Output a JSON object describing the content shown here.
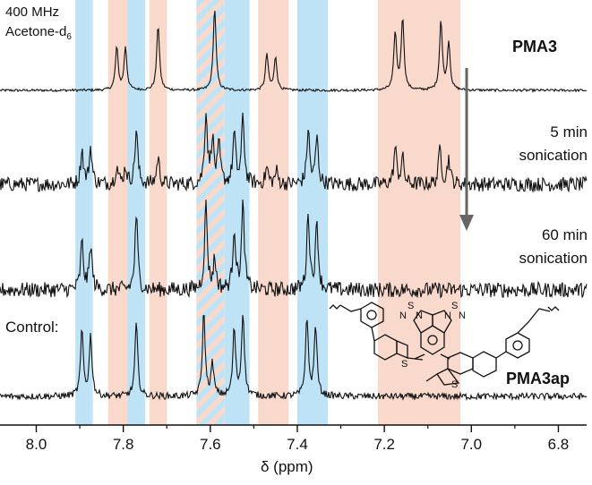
{
  "chart_data": {
    "type": "line",
    "xlabel": "δ (ppm)",
    "xlim": [
      8.1,
      6.7
    ],
    "x_ticks": [
      "8.0",
      "7.8",
      "7.6",
      "7.4",
      "7.2",
      "7.0",
      "6.8"
    ],
    "x_tick_values": [
      8.0,
      7.8,
      7.6,
      7.4,
      7.2,
      7.0,
      6.8
    ],
    "x_reversed": true,
    "grid": false,
    "header": {
      "line1": "400 MHz",
      "line2": "Acetone-d",
      "line2_sub": "6"
    },
    "highlight_bands": [
      {
        "from": 7.91,
        "to": 7.87,
        "color": "#bfe3f6"
      },
      {
        "from": 7.835,
        "to": 7.79,
        "color": "#f8d9cc"
      },
      {
        "from": 7.79,
        "to": 7.75,
        "color": "#bfe3f6"
      },
      {
        "from": 7.74,
        "to": 7.7,
        "color": "#f8d9cc"
      },
      {
        "from": 7.632,
        "to": 7.567,
        "color": "striped",
        "stripe_colors": [
          "#bfe3f6",
          "#f8d9cc"
        ]
      },
      {
        "from": 7.567,
        "to": 7.51,
        "color": "#bfe3f6"
      },
      {
        "from": 7.49,
        "to": 7.42,
        "color": "#f8d9cc"
      },
      {
        "from": 7.4,
        "to": 7.33,
        "color": "#bfe3f6"
      },
      {
        "from": 7.215,
        "to": 7.025,
        "color": "#f8d9cc"
      }
    ],
    "series": [
      {
        "name": "PMA3",
        "name_bold": true,
        "noise": 0.015,
        "peaks": [
          [
            7.815,
            0.52
          ],
          [
            7.795,
            0.52
          ],
          [
            7.72,
            0.8
          ],
          [
            7.59,
            1.0
          ],
          [
            7.47,
            0.44
          ],
          [
            7.45,
            0.4
          ],
          [
            7.175,
            0.7
          ],
          [
            7.158,
            0.88
          ],
          [
            7.07,
            0.84
          ],
          [
            7.052,
            0.58
          ]
        ]
      },
      {
        "name_lines": [
          "5 min",
          "sonication"
        ],
        "noise": 0.09,
        "peaks": [
          [
            7.895,
            0.42
          ],
          [
            7.875,
            0.45
          ],
          [
            7.815,
            0.22
          ],
          [
            7.795,
            0.2
          ],
          [
            7.77,
            0.68
          ],
          [
            7.72,
            0.33
          ],
          [
            7.61,
            0.88
          ],
          [
            7.595,
            0.55
          ],
          [
            7.58,
            0.45
          ],
          [
            7.545,
            0.62
          ],
          [
            7.525,
            0.82
          ],
          [
            7.47,
            0.2
          ],
          [
            7.448,
            0.16
          ],
          [
            7.375,
            0.68
          ],
          [
            7.355,
            0.58
          ],
          [
            7.175,
            0.45
          ],
          [
            7.158,
            0.32
          ],
          [
            7.072,
            0.45
          ],
          [
            7.052,
            0.32
          ]
        ]
      },
      {
        "name_lines": [
          "60 min",
          "sonication"
        ],
        "noise": 0.09,
        "peaks": [
          [
            7.895,
            0.55
          ],
          [
            7.875,
            0.52
          ],
          [
            7.77,
            0.88
          ],
          [
            7.61,
            1.0
          ],
          [
            7.59,
            0.35
          ],
          [
            7.545,
            0.72
          ],
          [
            7.525,
            0.98
          ],
          [
            7.375,
            0.9
          ],
          [
            7.355,
            0.78
          ]
        ]
      },
      {
        "name": "Control:",
        "label": "PMA3ap",
        "label_bold": true,
        "noise": 0.04,
        "peaks": [
          [
            7.895,
            0.78
          ],
          [
            7.875,
            0.72
          ],
          [
            7.77,
            0.88
          ],
          [
            7.615,
            1.0
          ],
          [
            7.595,
            0.38
          ],
          [
            7.545,
            0.8
          ],
          [
            7.525,
            1.0
          ],
          [
            7.378,
            0.95
          ],
          [
            7.358,
            0.85
          ]
        ]
      }
    ],
    "arrow": {
      "from_x": 7.01,
      "note": "downward arrow indicating time"
    }
  }
}
